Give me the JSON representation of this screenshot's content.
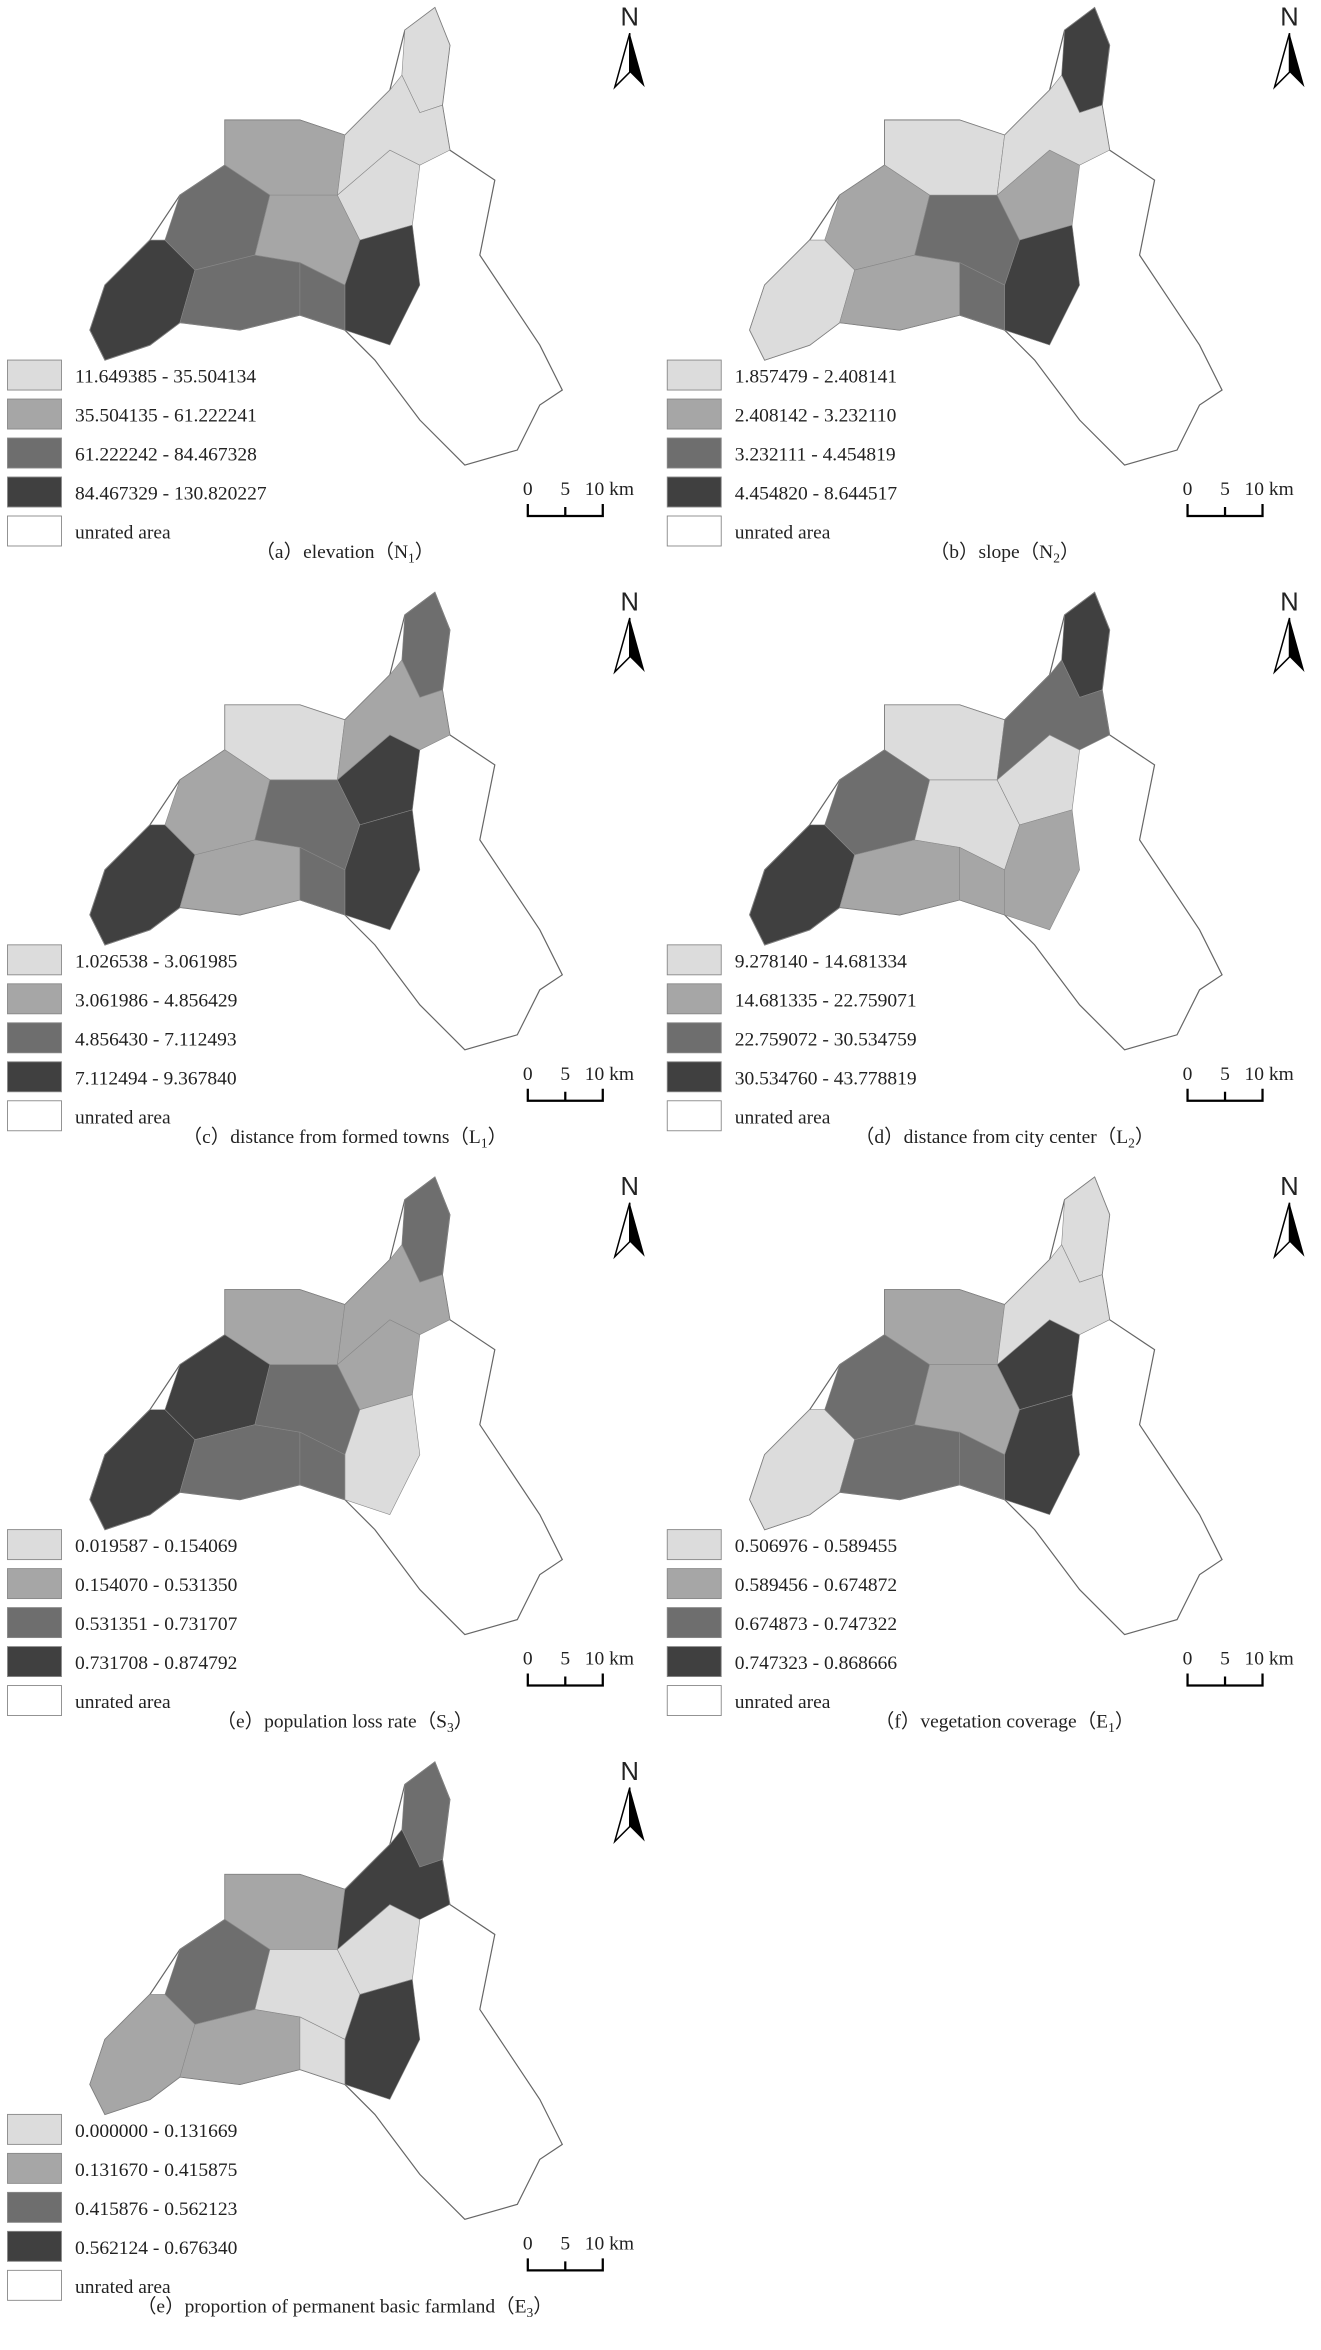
{
  "panels": [
    {
      "caption": {
        "prefix": "（a）elevation（N",
        "subscript": "1",
        "suffix": "）"
      },
      "classes": [
        "11.649385 - 35.504134",
        "35.504135 - 61.222241",
        "61.222242 - 84.467328",
        "84.467329 - 130.820227"
      ]
    },
    {
      "caption": {
        "prefix": "（b）slope（N",
        "subscript": "2",
        "suffix": "）"
      },
      "classes": [
        "1.857479 - 2.408141",
        "2.408142 - 3.232110",
        "3.232111 - 4.454819",
        "4.454820 - 8.644517"
      ]
    },
    {
      "caption": {
        "prefix": "（c）distance from formed towns（L",
        "subscript": "1",
        "suffix": "）"
      },
      "classes": [
        "1.026538 - 3.061985",
        "3.061986 - 4.856429",
        "4.856430 - 7.112493",
        "7.112494 - 9.367840"
      ]
    },
    {
      "caption": {
        "prefix": "（d）distance from city center（L",
        "subscript": "2",
        "suffix": "）"
      },
      "classes": [
        "9.278140 - 14.681334",
        "14.681335 - 22.759071",
        "22.759072 - 30.534759",
        "30.534760 - 43.778819"
      ]
    },
    {
      "caption": {
        "prefix": "（e）population loss rate（S",
        "subscript": "3",
        "suffix": "）"
      },
      "classes": [
        "0.019587 - 0.154069",
        "0.154070 - 0.531350",
        "0.531351 - 0.731707",
        "0.731708 - 0.874792"
      ]
    },
    {
      "caption": {
        "prefix": "（f）vegetation coverage（E",
        "subscript": "1",
        "suffix": "）"
      },
      "classes": [
        "0.506976 - 0.589455",
        "0.589456 - 0.674872",
        "0.674873 - 0.747322",
        "0.747323 - 0.868666"
      ]
    },
    {
      "caption": {
        "prefix": "（e）proportion of permanent basic farmland（E",
        "subscript": "3",
        "suffix": "）"
      },
      "classes": [
        "0.000000 - 0.131669",
        "0.131670 - 0.415875",
        "0.415876 - 0.562123",
        "0.562124 - 0.676340"
      ]
    }
  ],
  "class_colors": [
    "#dcdcdc",
    "#a6a6a6",
    "#6e6e6e",
    "#404040"
  ],
  "unrated_label": "unrated area",
  "north_label": "N",
  "scale_labels": [
    "0",
    "5",
    "10 km"
  ]
}
